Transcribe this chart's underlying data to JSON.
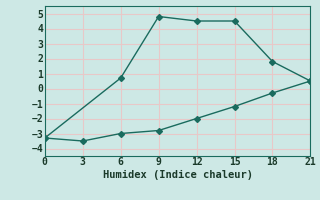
{
  "line1_x": [
    0,
    6,
    9,
    12,
    15,
    18,
    21
  ],
  "line1_y": [
    -3.3,
    0.7,
    4.8,
    4.5,
    4.5,
    1.8,
    0.5
  ],
  "line2_x": [
    0,
    3,
    6,
    9,
    12,
    15,
    18,
    21
  ],
  "line2_y": [
    -3.3,
    -3.5,
    -3.0,
    -2.8,
    -2.0,
    -1.2,
    -0.3,
    0.5
  ],
  "line_color": "#1a6b5e",
  "bg_color": "#cde8e5",
  "grid_color": "#b0d4d0",
  "xlabel": "Humidex (Indice chaleur)",
  "xlim": [
    0,
    21
  ],
  "ylim": [
    -4.5,
    5.5
  ],
  "xticks": [
    0,
    3,
    6,
    9,
    12,
    15,
    18,
    21
  ],
  "yticks": [
    -4,
    -3,
    -2,
    -1,
    0,
    1,
    2,
    3,
    4,
    5
  ],
  "font_color": "#1a3a2a"
}
